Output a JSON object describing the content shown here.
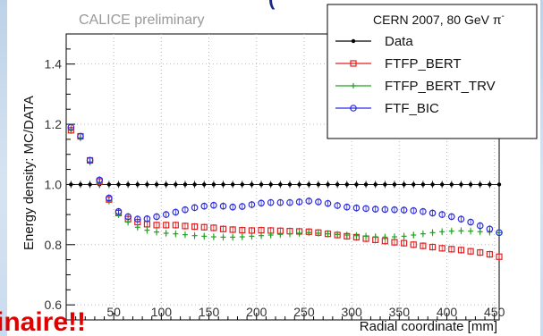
{
  "chart_data": {
    "type": "scatter",
    "watermark": "CALICE preliminary",
    "legend_header": "CERN 2007, 80 GeV π",
    "legend_header_sup": "-",
    "legend_position": "top-right",
    "xlabel": "Radial coordinate [mm]",
    "ylabel": "Energy density: MC/DATA",
    "xlim": [
      0,
      455
    ],
    "ylim": [
      0.55,
      1.5
    ],
    "xticks": [
      50,
      100,
      150,
      200,
      250,
      300,
      350,
      400,
      450
    ],
    "yticks": [
      0.6,
      0.8,
      1.0,
      1.2,
      1.4
    ],
    "ytick_labels": [
      "0.6",
      "0.8",
      "1.0",
      "1.2",
      "1.4"
    ],
    "grid": true,
    "series": [
      {
        "name": "Data",
        "color": "#000000",
        "marker": "dot",
        "x": [
          5,
          15,
          25,
          35,
          45,
          55,
          65,
          75,
          85,
          95,
          105,
          115,
          125,
          135,
          145,
          155,
          165,
          175,
          185,
          195,
          205,
          215,
          225,
          235,
          245,
          255,
          265,
          275,
          285,
          295,
          305,
          315,
          325,
          335,
          345,
          355,
          365,
          375,
          385,
          395,
          405,
          415,
          425,
          435,
          445,
          455
        ],
        "y": [
          1.0,
          1.0,
          1.0,
          1.0,
          1.0,
          1.0,
          1.0,
          1.0,
          1.0,
          1.0,
          1.0,
          1.0,
          1.0,
          1.0,
          1.0,
          1.0,
          1.0,
          1.0,
          1.0,
          1.0,
          1.0,
          1.0,
          1.0,
          1.0,
          1.0,
          1.0,
          1.0,
          1.0,
          1.0,
          1.0,
          1.0,
          1.0,
          1.0,
          1.0,
          1.0,
          1.0,
          1.0,
          1.0,
          1.0,
          1.0,
          1.0,
          1.0,
          1.0,
          1.0,
          1.0,
          1.0
        ]
      },
      {
        "name": "FTFP_BERT",
        "color": "#e02020",
        "marker": "open-square",
        "x": [
          5,
          15,
          25,
          35,
          45,
          55,
          65,
          75,
          85,
          95,
          105,
          115,
          125,
          135,
          145,
          155,
          165,
          175,
          185,
          195,
          205,
          215,
          225,
          235,
          245,
          255,
          265,
          275,
          285,
          295,
          305,
          315,
          325,
          335,
          345,
          355,
          365,
          375,
          385,
          395,
          405,
          415,
          425,
          435,
          445,
          455
        ],
        "y": [
          1.18,
          1.16,
          1.08,
          1.01,
          0.95,
          0.905,
          0.885,
          0.875,
          0.868,
          0.865,
          0.865,
          0.865,
          0.862,
          0.86,
          0.858,
          0.856,
          0.852,
          0.85,
          0.848,
          0.847,
          0.848,
          0.847,
          0.846,
          0.845,
          0.844,
          0.843,
          0.84,
          0.836,
          0.832,
          0.828,
          0.825,
          0.82,
          0.816,
          0.812,
          0.808,
          0.805,
          0.8,
          0.796,
          0.792,
          0.788,
          0.785,
          0.782,
          0.778,
          0.774,
          0.768,
          0.76
        ]
      },
      {
        "name": "FTFP_BERT_TRV",
        "color": "#22a022",
        "marker": "cross",
        "x": [
          5,
          15,
          25,
          35,
          45,
          55,
          65,
          75,
          85,
          95,
          105,
          115,
          125,
          135,
          145,
          155,
          165,
          175,
          185,
          195,
          205,
          215,
          225,
          235,
          245,
          255,
          265,
          275,
          285,
          295,
          305,
          315,
          325,
          335,
          345,
          355,
          365,
          375,
          385,
          395,
          405,
          415,
          425,
          435,
          445,
          455
        ],
        "y": [
          1.18,
          1.155,
          1.075,
          1.005,
          0.945,
          0.9,
          0.875,
          0.858,
          0.848,
          0.842,
          0.838,
          0.836,
          0.833,
          0.83,
          0.828,
          0.826,
          0.825,
          0.825,
          0.826,
          0.828,
          0.83,
          0.832,
          0.834,
          0.836,
          0.838,
          0.84,
          0.838,
          0.836,
          0.834,
          0.832,
          0.83,
          0.828,
          0.826,
          0.825,
          0.826,
          0.828,
          0.832,
          0.836,
          0.84,
          0.843,
          0.845,
          0.846,
          0.845,
          0.843,
          0.842,
          0.84
        ]
      },
      {
        "name": "FTF_BIC",
        "color": "#2a2ae0",
        "marker": "open-circle",
        "x": [
          5,
          15,
          25,
          35,
          45,
          55,
          65,
          75,
          85,
          95,
          105,
          115,
          125,
          135,
          145,
          155,
          165,
          175,
          185,
          195,
          205,
          215,
          225,
          235,
          245,
          255,
          265,
          275,
          285,
          295,
          305,
          315,
          325,
          335,
          345,
          355,
          365,
          375,
          385,
          395,
          405,
          415,
          425,
          435,
          445,
          455
        ],
        "y": [
          1.19,
          1.16,
          1.08,
          1.015,
          0.955,
          0.91,
          0.893,
          0.885,
          0.886,
          0.893,
          0.9,
          0.908,
          0.916,
          0.923,
          0.928,
          0.931,
          0.928,
          0.925,
          0.927,
          0.933,
          0.938,
          0.94,
          0.94,
          0.94,
          0.942,
          0.945,
          0.942,
          0.937,
          0.93,
          0.925,
          0.922,
          0.92,
          0.918,
          0.917,
          0.916,
          0.915,
          0.913,
          0.91,
          0.905,
          0.9,
          0.893,
          0.885,
          0.875,
          0.863,
          0.852,
          0.84
        ]
      }
    ]
  },
  "overlay": {
    "header_fragment": "(",
    "footer_fragment": "inaire!!"
  }
}
